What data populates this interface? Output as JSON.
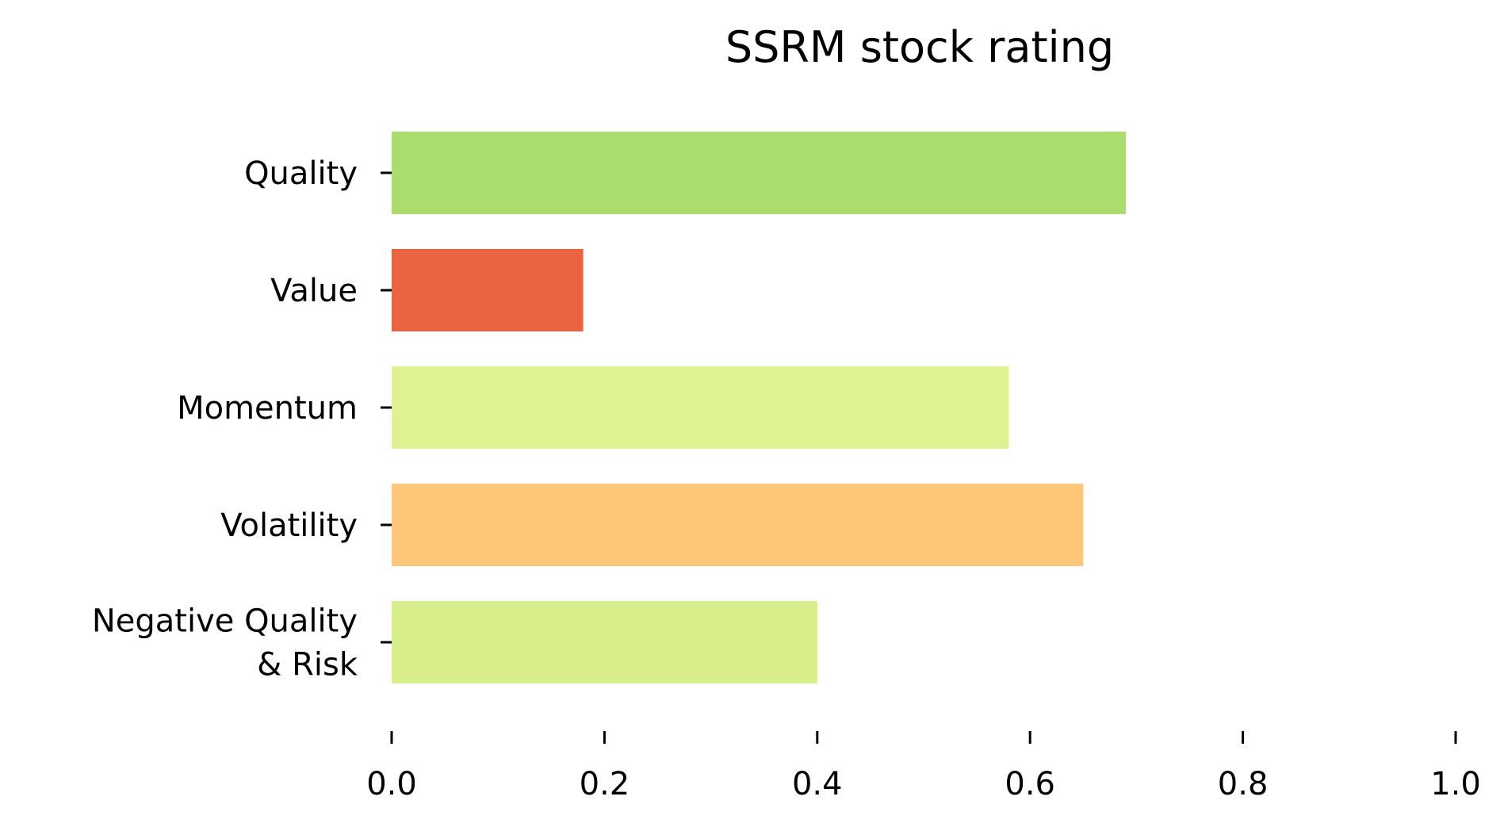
{
  "chart_data": {
    "type": "bar",
    "orientation": "horizontal",
    "title": "SSRM stock rating",
    "xlabel": "",
    "ylabel": "",
    "xlim": [
      0,
      1.0
    ],
    "grid": false,
    "legend": "none",
    "categories": [
      "Quality",
      "Value",
      "Momentum",
      "Volatility",
      "Negative Quality\n& Risk"
    ],
    "values": [
      0.69,
      0.18,
      0.58,
      0.65,
      0.4
    ],
    "colors": [
      "#abdc6e",
      "#ec6341",
      "#dff291",
      "#fdc678",
      "#d8ee8a"
    ],
    "x_ticks": [
      "0.0",
      "0.2",
      "0.4",
      "0.6",
      "0.8",
      "1.0"
    ]
  }
}
